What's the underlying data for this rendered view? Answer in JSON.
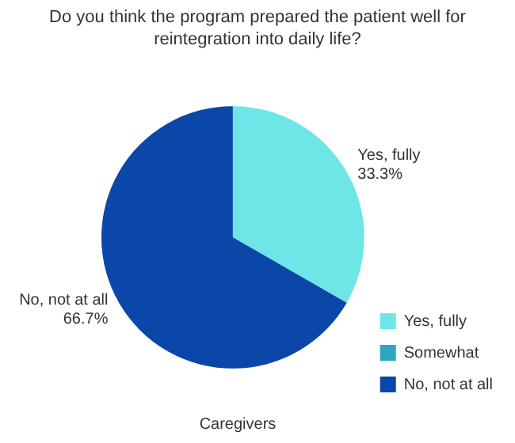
{
  "chart_data": {
    "type": "pie",
    "title": "Do you think the program prepared the patient well for reintegration into daily life?",
    "categories": [
      "Yes, fully",
      "Somewhat",
      "No, not at all"
    ],
    "values": [
      33.3,
      0,
      66.7
    ],
    "value_labels": [
      "33.3%",
      null,
      "66.7%"
    ],
    "colors": [
      "#6ee6e8",
      "#2aa6c2",
      "#0a47a8"
    ],
    "legend": "bottom right",
    "annotations": [
      "Caregivers"
    ]
  }
}
